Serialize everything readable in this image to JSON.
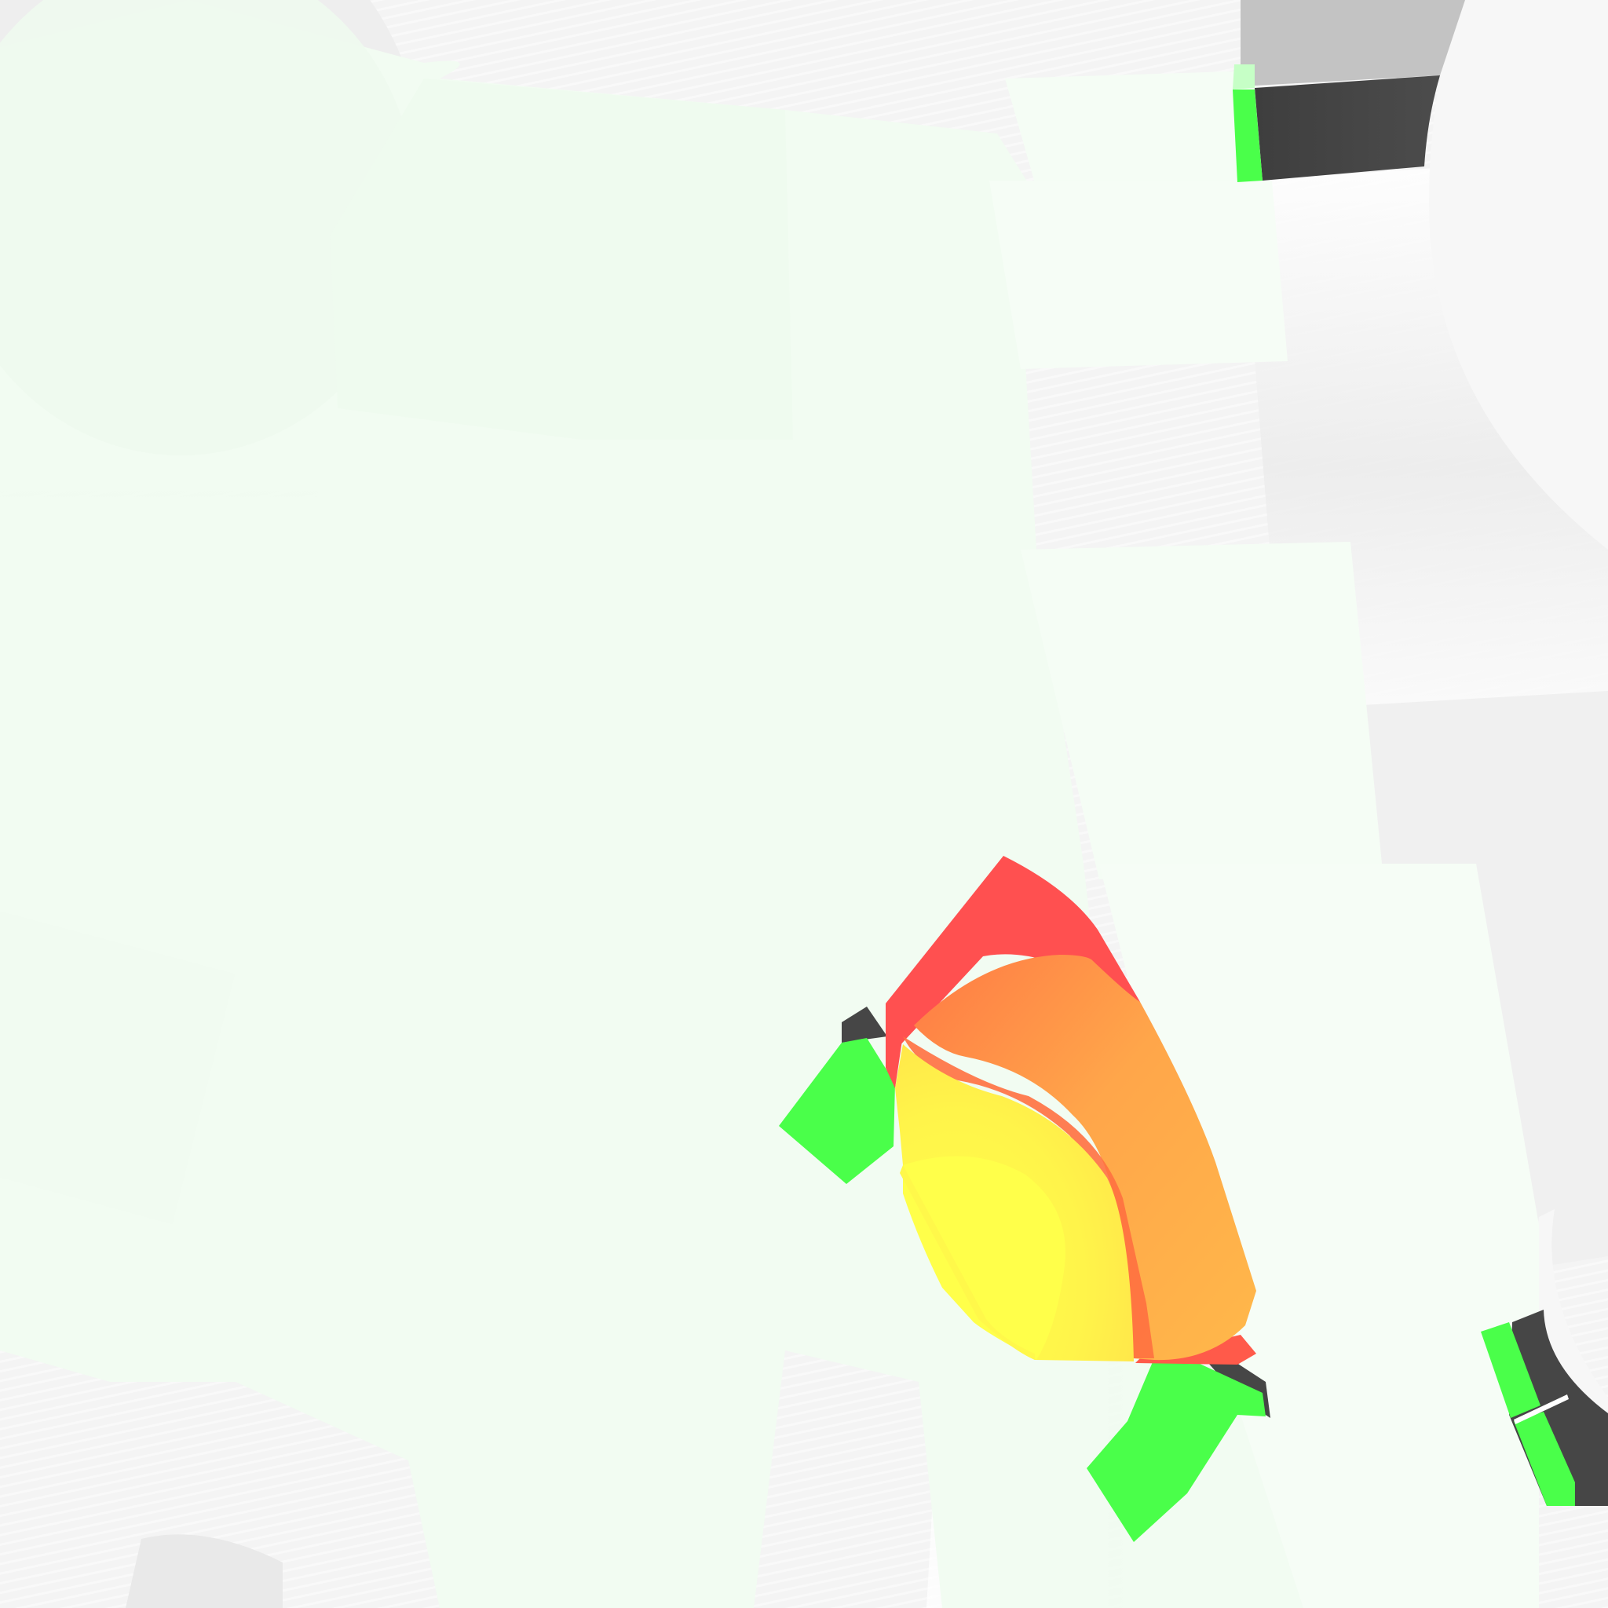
{
  "map": {
    "colors": {
      "background": "#f4f4f4",
      "road_light": "#ffffff",
      "road_shade": "#e6e6e6",
      "asphalt_dark": "#464646",
      "asphalt_gray": "#c3c3c3",
      "green_overlay": "#f1fcf1",
      "lane_green": "#4aff4a",
      "heat_red": "#ff5050",
      "heat_orange": "#ffb04a",
      "heat_redorange": "#ff7040",
      "heat_yellow": "#ffff4a",
      "heat_yellow_light": "#ffea4a"
    },
    "layers": [
      "background",
      "road-surface",
      "green-overlay",
      "dark-asphalt",
      "green-lane-markers",
      "heatmap-intersection"
    ]
  }
}
